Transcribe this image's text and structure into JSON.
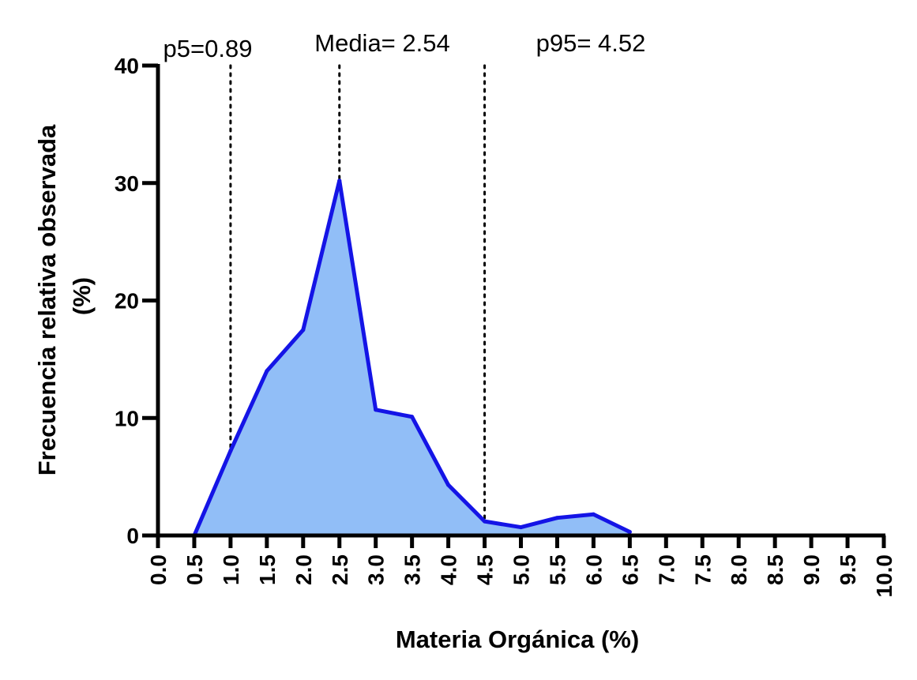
{
  "chart_data": {
    "type": "area",
    "xlabel": "Materia Orgánica (%)",
    "ylabel_line1": "Frecuencia relativa observada",
    "ylabel_line2": "(%)",
    "xlim": [
      0,
      10
    ],
    "ylim": [
      0,
      40
    ],
    "x_ticks": [
      "0.0",
      "0.5",
      "1.0",
      "1.5",
      "2.0",
      "2.5",
      "3.0",
      "3.5",
      "4.0",
      "4.5",
      "5.0",
      "5.5",
      "6.0",
      "6.5",
      "7.0",
      "7.5",
      "8.0",
      "8.5",
      "9.0",
      "9.5",
      "10.0"
    ],
    "y_ticks": [
      "0",
      "10",
      "20",
      "30",
      "40"
    ],
    "series": [
      {
        "name": "Frecuencia relativa",
        "x": [
          0.5,
          1.0,
          1.5,
          2.0,
          2.5,
          3.0,
          3.5,
          4.0,
          4.5,
          5.0,
          5.5,
          6.0,
          6.5
        ],
        "y": [
          0.0,
          7.2,
          14.0,
          17.5,
          30.2,
          10.7,
          10.1,
          4.3,
          1.2,
          0.7,
          1.5,
          1.8,
          0.3
        ]
      }
    ],
    "reference_lines": [
      {
        "label": "p5=0.89",
        "x": 1.0
      },
      {
        "label": "Media= 2.54",
        "x": 2.5
      },
      {
        "label": "p95= 4.52",
        "x": 4.5
      }
    ],
    "colors": {
      "line": "#1414E6",
      "fill": "#91BEF7",
      "axis": "#000000"
    }
  }
}
